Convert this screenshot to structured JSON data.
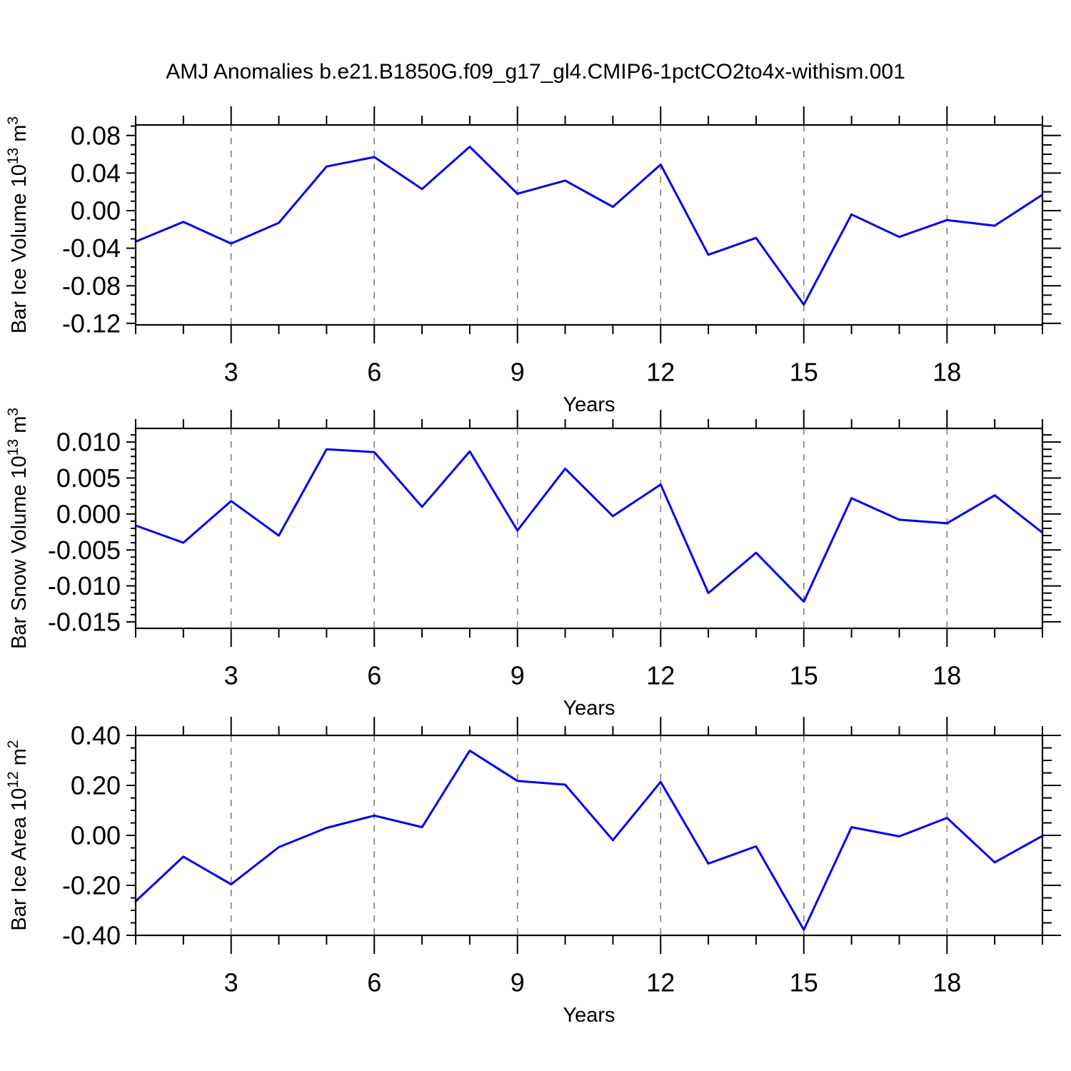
{
  "title": "AMJ Anomalies b.e21.B1850G.f09_g17_gl4.CMIP6-1pctCO2to4x-withism.001",
  "colors": {
    "line": "#0000f0",
    "grid": "#7f7f7f",
    "axis": "#000000",
    "background": "#ffffff"
  },
  "chart_data": [
    {
      "id": "ice-volume",
      "type": "line",
      "xlabel": "Years",
      "ylabel_plain": "Bar Ice Volume 10^13 m^3",
      "ylabel_parts": [
        {
          "t": "Bar Ice Volume 10"
        },
        {
          "t": "13",
          "sup": true
        },
        {
          "t": " m"
        },
        {
          "t": "3",
          "sup": true
        }
      ],
      "x": [
        1,
        2,
        3,
        4,
        5,
        6,
        7,
        8,
        9,
        10,
        11,
        12,
        13,
        14,
        15,
        16,
        17,
        18,
        19,
        20
      ],
      "values": [
        -0.033,
        -0.012,
        -0.035,
        -0.013,
        0.047,
        0.057,
        0.023,
        0.068,
        0.018,
        0.032,
        0.004,
        0.049,
        -0.047,
        -0.029,
        -0.1,
        -0.004,
        -0.028,
        -0.01,
        -0.016,
        0.017
      ],
      "xlim": [
        1,
        20
      ],
      "ylim": [
        -0.1216,
        0.0912
      ],
      "x_major": [
        3,
        6,
        9,
        12,
        15,
        18
      ],
      "x_major_labels": [
        "3",
        "6",
        "9",
        "12",
        "15",
        "18"
      ],
      "x_minor": [
        1,
        2,
        4,
        5,
        7,
        8,
        10,
        11,
        13,
        14,
        16,
        17,
        19,
        20
      ],
      "y_major": [
        0.08,
        0.04,
        0.0,
        -0.04,
        -0.08,
        -0.12
      ],
      "y_major_labels": [
        "0.08",
        "0.04",
        "0.00",
        "-0.04",
        "-0.08",
        "-0.12"
      ],
      "y_minor": [
        0.09,
        0.07,
        0.06,
        0.05,
        0.03,
        0.02,
        0.01,
        -0.01,
        -0.02,
        -0.03,
        -0.05,
        -0.06,
        -0.07,
        -0.09,
        -0.1,
        -0.11
      ],
      "grid": "vertical-dashed",
      "legend": "none"
    },
    {
      "id": "snow-volume",
      "type": "line",
      "xlabel": "Years",
      "ylabel_plain": "Bar Snow Volume 10^13 m^3",
      "ylabel_parts": [
        {
          "t": "Bar Snow Volume 10"
        },
        {
          "t": "13",
          "sup": true
        },
        {
          "t": " m"
        },
        {
          "t": "3",
          "sup": true
        }
      ],
      "x": [
        1,
        2,
        3,
        4,
        5,
        6,
        7,
        8,
        9,
        10,
        11,
        12,
        13,
        14,
        15,
        16,
        17,
        18,
        19,
        20
      ],
      "values": [
        -0.0016,
        -0.004,
        0.0018,
        -0.003,
        0.009,
        0.0086,
        0.001,
        0.0087,
        -0.0023,
        0.0063,
        -0.0003,
        0.0041,
        -0.011,
        -0.0054,
        -0.0122,
        0.0022,
        -0.0008,
        -0.0013,
        0.0026,
        -0.0026
      ],
      "xlim": [
        1,
        20
      ],
      "ylim": [
        -0.0159,
        0.0119
      ],
      "x_major": [
        3,
        6,
        9,
        12,
        15,
        18
      ],
      "x_major_labels": [
        "3",
        "6",
        "9",
        "12",
        "15",
        "18"
      ],
      "x_minor": [
        1,
        2,
        4,
        5,
        7,
        8,
        10,
        11,
        13,
        14,
        16,
        17,
        19,
        20
      ],
      "y_major": [
        0.01,
        0.005,
        0.0,
        -0.005,
        -0.01,
        -0.015
      ],
      "y_major_labels": [
        "0.010",
        "0.005",
        "0.000",
        "-0.005",
        "-0.010",
        "-0.015"
      ],
      "y_minor": [
        0.011,
        0.009,
        0.008,
        0.007,
        0.006,
        0.004,
        0.003,
        0.002,
        0.001,
        -0.001,
        -0.002,
        -0.003,
        -0.004,
        -0.006,
        -0.007,
        -0.008,
        -0.009,
        -0.011,
        -0.012,
        -0.013,
        -0.014
      ],
      "grid": "vertical-dashed",
      "legend": "none"
    },
    {
      "id": "ice-area",
      "type": "line",
      "xlabel": "Years",
      "ylabel_plain": "Bar Ice Area 10^12 m^2",
      "ylabel_parts": [
        {
          "t": "Bar Ice Area 10"
        },
        {
          "t": "12",
          "sup": true
        },
        {
          "t": " m"
        },
        {
          "t": "2",
          "sup": true
        }
      ],
      "x": [
        1,
        2,
        3,
        4,
        5,
        6,
        7,
        8,
        9,
        10,
        11,
        12,
        13,
        14,
        15,
        16,
        17,
        18,
        19,
        20
      ],
      "values": [
        -0.264,
        -0.085,
        -0.196,
        -0.047,
        0.03,
        0.079,
        0.033,
        0.339,
        0.218,
        0.203,
        -0.019,
        0.214,
        -0.113,
        -0.044,
        -0.378,
        0.033,
        -0.004,
        0.07,
        -0.108,
        -0.002
      ],
      "xlim": [
        1,
        20
      ],
      "ylim": [
        -0.4,
        0.4
      ],
      "x_major": [
        3,
        6,
        9,
        12,
        15,
        18
      ],
      "x_major_labels": [
        "3",
        "6",
        "9",
        "12",
        "15",
        "18"
      ],
      "x_minor": [
        1,
        2,
        4,
        5,
        7,
        8,
        10,
        11,
        13,
        14,
        16,
        17,
        19,
        20
      ],
      "y_major": [
        0.4,
        0.2,
        0.0,
        -0.2,
        -0.4
      ],
      "y_major_labels": [
        "0.40",
        "0.20",
        "0.00",
        "-0.20",
        "-0.40"
      ],
      "y_minor": [
        0.35,
        0.3,
        0.25,
        0.15,
        0.1,
        0.05,
        -0.05,
        -0.1,
        -0.15,
        -0.25,
        -0.3,
        -0.35
      ],
      "grid": "vertical-dashed",
      "legend": "none"
    }
  ]
}
